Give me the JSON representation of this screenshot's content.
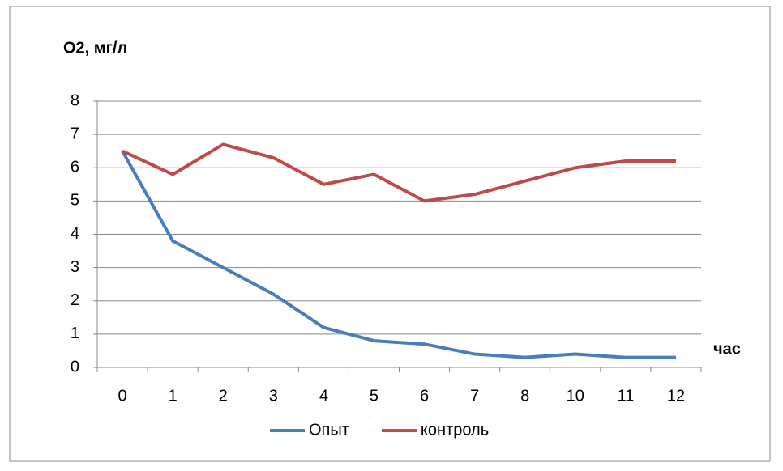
{
  "chart_data": {
    "type": "line",
    "y_label": "O2, мг/л",
    "x_label": "час",
    "categories": [
      "0",
      "1",
      "2",
      "3",
      "4",
      "5",
      "6",
      "7",
      "8",
      "10",
      "11",
      "12"
    ],
    "series": [
      {
        "name": "Опыт",
        "color": "#4a7ebb",
        "values": [
          6.5,
          3.8,
          3.0,
          2.2,
          1.2,
          0.8,
          0.7,
          0.4,
          0.3,
          0.4,
          0.3,
          0.3
        ]
      },
      {
        "name": "контроль",
        "color": "#be4b48",
        "values": [
          6.5,
          5.8,
          6.7,
          6.3,
          5.5,
          5.8,
          5.0,
          5.2,
          5.6,
          6.0,
          6.2,
          6.2
        ]
      }
    ],
    "ylim": [
      0,
      8
    ],
    "yticks": [
      0,
      1,
      2,
      3,
      4,
      5,
      6,
      7,
      8
    ],
    "grid": true,
    "legend": "bottom"
  }
}
